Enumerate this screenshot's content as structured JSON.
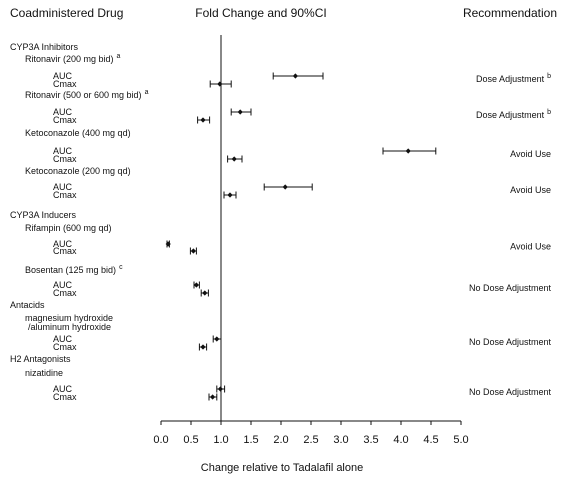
{
  "chart_data": {
    "type": "forest",
    "headers": {
      "drug": "Coadministered Drug",
      "plot": "Fold Change and 90%CI",
      "recommendation": "Recommendation"
    },
    "xlabel": "Change relative to Tadalafil alone",
    "xlim": [
      0.0,
      5.0
    ],
    "xticks": [
      "0.0",
      "0.5",
      "1.0",
      "1.5",
      "2.0",
      "2.5",
      "3.0",
      "3.5",
      "4.0",
      "4.5",
      "5.0"
    ],
    "reference_line": 1.0,
    "groups": [
      {
        "name": "CYP3A Inhibitors",
        "drugs": [
          {
            "name": "Ritonavir (200 mg bid)",
            "sup": "a",
            "recommendation": "Dose Adjustment",
            "rec_sup": "b",
            "rows": [
              {
                "label": "AUC",
                "estimate": 2.24,
                "lower": 1.87,
                "upper": 2.7
              },
              {
                "label": "Cmax",
                "estimate": 0.98,
                "lower": 0.82,
                "upper": 1.17
              }
            ]
          },
          {
            "name": "Ritonavir (500 or 600  mg bid)",
            "sup": "a",
            "recommendation": "Dose Adjustment",
            "rec_sup": "b",
            "rows": [
              {
                "label": "AUC",
                "estimate": 1.32,
                "lower": 1.17,
                "upper": 1.5
              },
              {
                "label": "Cmax",
                "estimate": 0.7,
                "lower": 0.61,
                "upper": 0.81
              }
            ]
          },
          {
            "name": "Ketoconazole (400 mg qd)",
            "sup": "",
            "recommendation": "Avoid Use",
            "rec_sup": "",
            "rows": [
              {
                "label": "AUC",
                "estimate": 4.12,
                "lower": 3.7,
                "upper": 4.58
              },
              {
                "label": "Cmax",
                "estimate": 1.22,
                "lower": 1.11,
                "upper": 1.35
              }
            ]
          },
          {
            "name": "Ketoconazole (200 mg qd)",
            "sup": "",
            "recommendation": "Avoid Use",
            "rec_sup": "",
            "rows": [
              {
                "label": "AUC",
                "estimate": 2.07,
                "lower": 1.72,
                "upper": 2.52
              },
              {
                "label": "Cmax",
                "estimate": 1.15,
                "lower": 1.05,
                "upper": 1.25
              }
            ]
          }
        ]
      },
      {
        "name": "CYP3A Inducers",
        "drugs": [
          {
            "name": "Rifampin (600 mg qd)",
            "sup": "",
            "recommendation": "Avoid Use",
            "rec_sup": "",
            "rows": [
              {
                "label": "AUC",
                "estimate": 0.12,
                "lower": 0.1,
                "upper": 0.14
              },
              {
                "label": "Cmax",
                "estimate": 0.54,
                "lower": 0.49,
                "upper": 0.59
              }
            ]
          },
          {
            "name": "Bosentan (125 mg bid)",
            "sup": "c",
            "recommendation": "No Dose Adjustment",
            "rec_sup": "",
            "rows": [
              {
                "label": "AUC",
                "estimate": 0.59,
                "lower": 0.55,
                "upper": 0.64
              },
              {
                "label": "Cmax",
                "estimate": 0.73,
                "lower": 0.67,
                "upper": 0.79
              }
            ]
          }
        ]
      },
      {
        "name": "Antacids",
        "drugs": [
          {
            "name": "magnesium hydroxide",
            "name2": "/aluminum hydroxide",
            "sup": "",
            "recommendation": "No Dose Adjustment",
            "rec_sup": "",
            "rows": [
              {
                "label": "AUC",
                "estimate": 0.93,
                "lower": 0.87,
                "upper": 1.0
              },
              {
                "label": "Cmax",
                "estimate": 0.7,
                "lower": 0.64,
                "upper": 0.76
              }
            ]
          }
        ]
      },
      {
        "name": "H2 Antagonists",
        "drugs": [
          {
            "name": "nizatidine",
            "sup": "",
            "recommendation": "No Dose Adjustment",
            "rec_sup": "",
            "rows": [
              {
                "label": "AUC",
                "estimate": 0.99,
                "lower": 0.93,
                "upper": 1.06
              },
              {
                "label": "Cmax",
                "estimate": 0.86,
                "lower": 0.8,
                "upper": 0.93
              }
            ]
          }
        ]
      }
    ]
  }
}
